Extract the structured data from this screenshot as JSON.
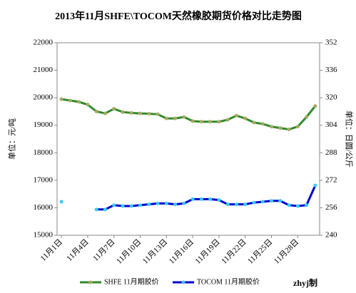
{
  "chart_data": {
    "type": "line",
    "title": "2013年11月SHFE\\TOCOM天然橡胶期货价格对比走势图",
    "y_label": "单位：元/吨",
    "y2_label": "单位：日圆/公斤",
    "credit": "zhyj制",
    "categories": [
      "11月1日",
      null,
      null,
      "11月4日",
      null,
      null,
      "11月7日",
      null,
      null,
      "11月10日",
      null,
      null,
      "11月13日",
      null,
      null,
      "11月16日",
      null,
      null,
      "11月19日",
      null,
      null,
      "11月22日",
      null,
      null,
      "11月25日",
      null,
      null,
      "11月28日",
      null,
      null
    ],
    "series": [
      {
        "name": "SHFE 11月期胶价",
        "color": "#2e8b2e",
        "marker_color": "#a8a860",
        "values": [
          19950,
          19900,
          19850,
          19750,
          19500,
          19430,
          19600,
          19480,
          19450,
          19430,
          19420,
          19400,
          19250,
          19250,
          19300,
          19150,
          19130,
          19130,
          19130,
          19200,
          19350,
          19250,
          19100,
          19050,
          18950,
          18900,
          18850,
          18950,
          19300,
          19700
        ]
      },
      {
        "name": "TOCOM 11月期胶价",
        "color": "#0000cc",
        "marker_color": "#33ccff",
        "axis": "y2",
        "values": [
          259.5,
          null,
          null,
          null,
          255,
          255,
          257.5,
          257,
          257,
          257.5,
          258,
          258.5,
          258.5,
          258,
          258.5,
          261,
          261,
          261,
          260.5,
          258,
          258,
          258,
          259,
          259.5,
          260,
          260,
          257.5,
          257,
          257.5,
          269
        ]
      }
    ],
    "ylim": [
      15000,
      22000
    ],
    "yticks": [
      15000,
      16000,
      17000,
      18000,
      19000,
      20000,
      21000,
      22000
    ],
    "y2lim": [
      240,
      352
    ],
    "y2ticks": [
      240,
      256,
      272,
      288,
      304,
      320,
      336,
      352
    ],
    "legend": "bottom"
  }
}
